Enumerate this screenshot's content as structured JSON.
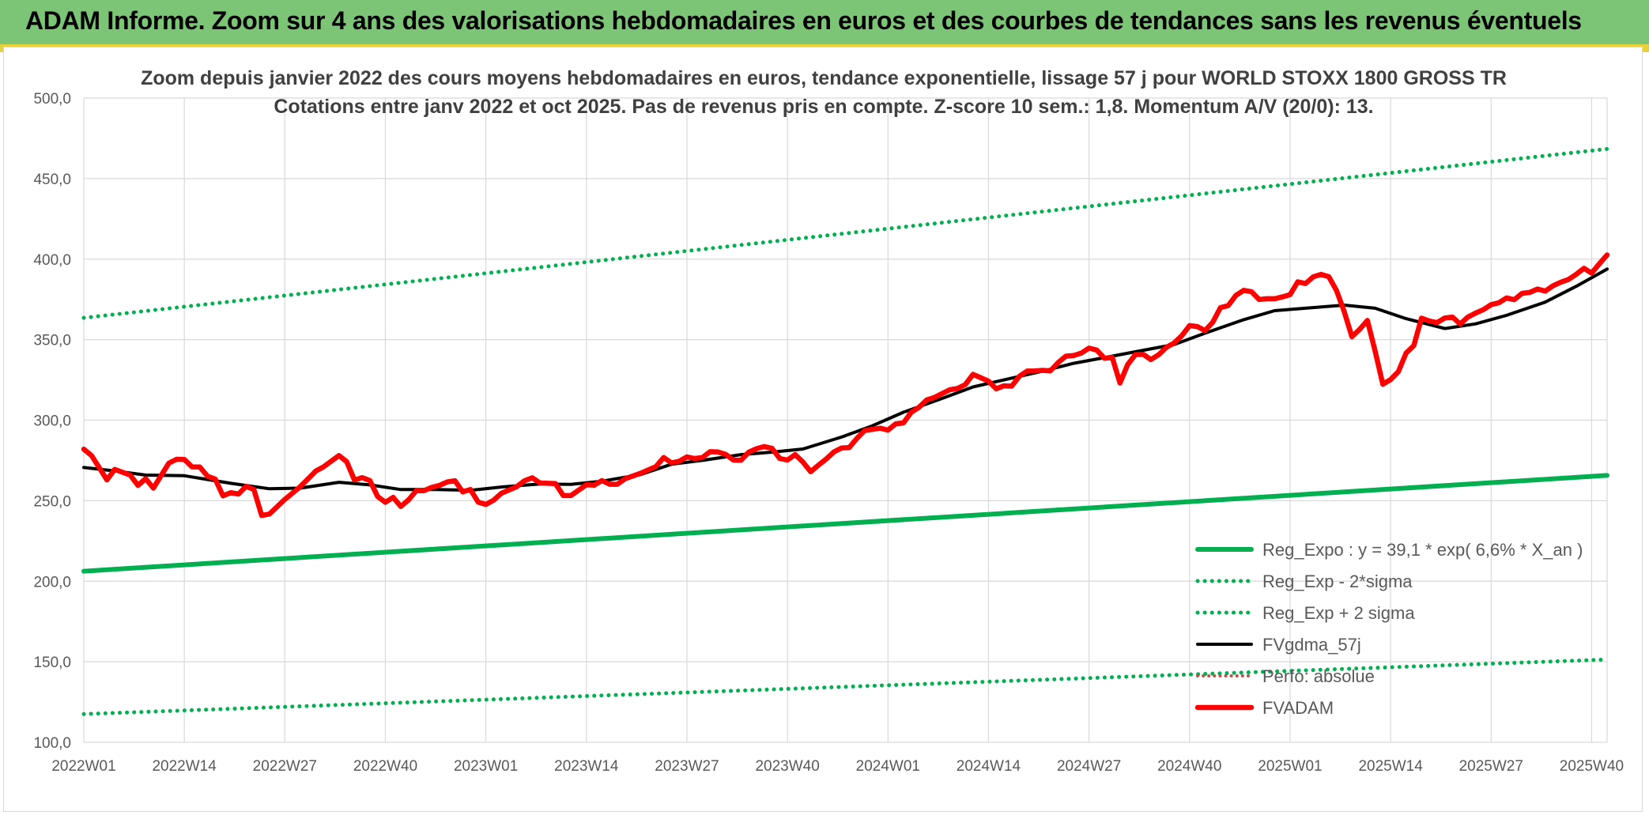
{
  "banner": {
    "title": "ADAM Informe. Zoom sur 4 ans des valorisations hebdomadaires en euros et des courbes de tendances sans les revenus éventuels"
  },
  "colors": {
    "banner_bg": "#7cc576",
    "regression": "#00b050",
    "gdma": "#000000",
    "adam": "#ff0000",
    "perfo": "#c0504d",
    "grid": "#d9d9d9",
    "axis_text": "#595959",
    "title_text": "#404040"
  },
  "chart_data": {
    "type": "line",
    "title": "Zoom depuis janvier 2022 des cours moyens hebdomadaires en euros, tendance exponentielle, lissage 57 j pour WORLD STOXX 1800 GROSS TR",
    "subtitle": "Cotations entre janv 2022 et oct 2025. Pas de revenus pris en compte. Z-score 10 sem.: 1,8. Momentum A/V (20/0): 13.",
    "xlabel": "",
    "ylabel": "",
    "ylim": [
      100,
      500
    ],
    "yticks": [
      "100,0",
      "150,0",
      "200,0",
      "250,0",
      "300,0",
      "350,0",
      "400,0",
      "450,0",
      "500,0"
    ],
    "xticks": [
      "2022W01",
      "2022W14",
      "2022W27",
      "2022W40",
      "2023W01",
      "2023W14",
      "2023W27",
      "2023W40",
      "2024W01",
      "2024W14",
      "2024W27",
      "2024W40",
      "2025W01",
      "2025W14",
      "2025W27",
      "2025W40"
    ],
    "grid": true,
    "legend_position": "bottom-right",
    "weeks": 198,
    "series": [
      {
        "name": "Reg_Expo : y = 39,1 * exp( 6,6% *  X_an )",
        "style": "solid-thick",
        "points": [
          [
            0,
            206.2
          ],
          [
            197,
            265.7
          ]
        ]
      },
      {
        "name": "Reg_Exp - 2*sigma",
        "style": "dotted",
        "points": [
          [
            0,
            117.5
          ],
          [
            197,
            151.4
          ]
        ]
      },
      {
        "name": "Reg_Exp + 2 sigma",
        "style": "dotted",
        "points": [
          [
            0,
            363.5
          ],
          [
            197,
            468.4
          ]
        ]
      },
      {
        "name": "FVgdma_57j",
        "style": "solid",
        "points": [
          [
            0,
            270.6
          ],
          [
            4,
            268.5
          ],
          [
            8,
            265.9
          ],
          [
            13,
            265.5
          ],
          [
            19,
            260.8
          ],
          [
            24,
            257.4
          ],
          [
            28,
            257.8
          ],
          [
            33,
            261.4
          ],
          [
            37,
            259.8
          ],
          [
            41,
            256.9
          ],
          [
            45,
            257.0
          ],
          [
            50,
            256.4
          ],
          [
            54,
            258.5
          ],
          [
            59,
            260.4
          ],
          [
            63,
            260.1
          ],
          [
            67,
            262.1
          ],
          [
            72,
            266.2
          ],
          [
            76,
            272.6
          ],
          [
            80,
            275.0
          ],
          [
            85,
            278.6
          ],
          [
            89,
            280.1
          ],
          [
            93,
            282.1
          ],
          [
            98,
            289.5
          ],
          [
            102,
            296.5
          ],
          [
            106,
            304.9
          ],
          [
            111,
            313.5
          ],
          [
            115,
            320.6
          ],
          [
            119,
            325.0
          ],
          [
            124,
            330.4
          ],
          [
            128,
            335.3
          ],
          [
            132,
            338.8
          ],
          [
            137,
            343.4
          ],
          [
            141,
            346.9
          ],
          [
            145,
            354.0
          ],
          [
            150,
            362.4
          ],
          [
            154,
            368.0
          ],
          [
            158,
            369.5
          ],
          [
            163,
            371.4
          ],
          [
            167,
            369.5
          ],
          [
            171,
            363.0
          ],
          [
            176,
            356.9
          ],
          [
            180,
            359.8
          ],
          [
            184,
            365.1
          ],
          [
            189,
            373.3
          ],
          [
            193,
            383.1
          ],
          [
            197,
            393.8
          ]
        ]
      },
      {
        "name": "Perfo: absolue",
        "style": "dotted-brown",
        "points": []
      },
      {
        "name": "FVADAM",
        "style": "solid-thick",
        "points": [
          [
            0,
            282.0
          ],
          [
            1,
            278.0
          ],
          [
            3,
            262.9
          ],
          [
            4,
            269.4
          ],
          [
            6,
            265.9
          ],
          [
            7,
            259.5
          ],
          [
            8,
            263.7
          ],
          [
            9,
            257.8
          ],
          [
            11,
            273.3
          ],
          [
            12,
            275.7
          ],
          [
            13,
            275.6
          ],
          [
            14,
            271.0
          ],
          [
            15,
            270.9
          ],
          [
            16,
            265.2
          ],
          [
            17,
            263.4
          ],
          [
            18,
            253.0
          ],
          [
            19,
            255.0
          ],
          [
            20,
            254.1
          ],
          [
            21,
            258.9
          ],
          [
            22,
            256.9
          ],
          [
            23,
            240.8
          ],
          [
            24,
            241.7
          ],
          [
            25,
            246.2
          ],
          [
            26,
            250.8
          ],
          [
            28,
            258.7
          ],
          [
            30,
            268.4
          ],
          [
            31,
            271.0
          ],
          [
            33,
            278.0
          ],
          [
            34,
            274.2
          ],
          [
            35,
            262.8
          ],
          [
            36,
            264.3
          ],
          [
            37,
            262.5
          ],
          [
            38,
            252.6
          ],
          [
            39,
            249.0
          ],
          [
            40,
            252.0
          ],
          [
            41,
            246.4
          ],
          [
            42,
            250.5
          ],
          [
            43,
            256.2
          ],
          [
            44,
            256.2
          ],
          [
            45,
            258.3
          ],
          [
            46,
            259.5
          ],
          [
            47,
            261.6
          ],
          [
            48,
            262.4
          ],
          [
            49,
            255.5
          ],
          [
            50,
            256.9
          ],
          [
            51,
            249.1
          ],
          [
            52,
            247.7
          ],
          [
            53,
            250.3
          ],
          [
            54,
            254.6
          ],
          [
            56,
            258.7
          ],
          [
            57,
            262.4
          ],
          [
            58,
            264.2
          ],
          [
            59,
            261.0
          ],
          [
            61,
            260.6
          ],
          [
            62,
            253.2
          ],
          [
            63,
            253.2
          ],
          [
            64,
            256.5
          ],
          [
            65,
            259.9
          ],
          [
            66,
            259.6
          ],
          [
            67,
            262.5
          ],
          [
            68,
            260.2
          ],
          [
            69,
            260.2
          ],
          [
            70,
            263.6
          ],
          [
            72,
            267.0
          ],
          [
            74,
            271.2
          ],
          [
            75,
            276.8
          ],
          [
            76,
            273.5
          ],
          [
            77,
            274.5
          ],
          [
            78,
            277.2
          ],
          [
            79,
            276.2
          ],
          [
            80,
            276.8
          ],
          [
            81,
            280.4
          ],
          [
            82,
            280.2
          ],
          [
            83,
            278.8
          ],
          [
            84,
            275.2
          ],
          [
            85,
            275.1
          ],
          [
            86,
            280.1
          ],
          [
            87,
            282.3
          ],
          [
            88,
            283.6
          ],
          [
            89,
            282.5
          ],
          [
            90,
            276.2
          ],
          [
            91,
            275.2
          ],
          [
            92,
            278.6
          ],
          [
            93,
            274.0
          ],
          [
            94,
            268.0
          ],
          [
            95,
            272.0
          ],
          [
            96,
            275.8
          ],
          [
            97,
            280.2
          ],
          [
            98,
            282.7
          ],
          [
            99,
            283.0
          ],
          [
            100,
            288.8
          ],
          [
            101,
            293.6
          ],
          [
            102,
            294.3
          ],
          [
            103,
            295.0
          ],
          [
            104,
            293.8
          ],
          [
            105,
            297.7
          ],
          [
            106,
            298.3
          ],
          [
            107,
            304.8
          ],
          [
            108,
            307.9
          ],
          [
            109,
            312.5
          ],
          [
            110,
            314.1
          ],
          [
            111,
            316.5
          ],
          [
            112,
            318.9
          ],
          [
            113,
            319.7
          ],
          [
            114,
            322.1
          ],
          [
            115,
            328.4
          ],
          [
            116,
            326.3
          ],
          [
            117,
            324.2
          ],
          [
            118,
            319.5
          ],
          [
            119,
            321.3
          ],
          [
            120,
            321.1
          ],
          [
            121,
            327.3
          ],
          [
            122,
            330.5
          ],
          [
            123,
            330.6
          ],
          [
            124,
            330.9
          ],
          [
            125,
            330.6
          ],
          [
            126,
            335.7
          ],
          [
            127,
            339.7
          ],
          [
            128,
            340.1
          ],
          [
            129,
            341.6
          ],
          [
            130,
            344.7
          ],
          [
            131,
            343.5
          ],
          [
            132,
            338.4
          ],
          [
            133,
            338.9
          ],
          [
            134,
            323.0
          ],
          [
            135,
            334.5
          ],
          [
            136,
            340.7
          ],
          [
            137,
            340.9
          ],
          [
            138,
            337.6
          ],
          [
            139,
            340.6
          ],
          [
            140,
            345.2
          ],
          [
            141,
            347.9
          ],
          [
            142,
            352.4
          ],
          [
            143,
            358.7
          ],
          [
            144,
            358.1
          ],
          [
            145,
            355.6
          ],
          [
            146,
            360.7
          ],
          [
            147,
            369.9
          ],
          [
            148,
            371.1
          ],
          [
            149,
            377.5
          ],
          [
            150,
            380.6
          ],
          [
            151,
            379.8
          ],
          [
            152,
            374.9
          ],
          [
            153,
            375.4
          ],
          [
            154,
            375.4
          ],
          [
            155,
            376.5
          ],
          [
            156,
            377.9
          ],
          [
            157,
            385.9
          ],
          [
            158,
            384.8
          ],
          [
            159,
            389.0
          ],
          [
            160,
            390.5
          ],
          [
            161,
            389.1
          ],
          [
            162,
            380.6
          ],
          [
            163,
            367.5
          ],
          [
            164,
            351.8
          ],
          [
            165,
            356.4
          ],
          [
            166,
            361.9
          ],
          [
            167,
            343.0
          ],
          [
            168,
            322.3
          ],
          [
            169,
            325.2
          ],
          [
            170,
            330.1
          ],
          [
            171,
            341.6
          ],
          [
            172,
            346.3
          ],
          [
            173,
            363.3
          ],
          [
            174,
            361.6
          ],
          [
            175,
            360.5
          ],
          [
            176,
            363.4
          ],
          [
            177,
            364.0
          ],
          [
            178,
            359.7
          ],
          [
            179,
            364.0
          ],
          [
            180,
            366.5
          ],
          [
            181,
            368.6
          ],
          [
            182,
            371.7
          ],
          [
            183,
            372.9
          ],
          [
            184,
            375.9
          ],
          [
            185,
            374.8
          ],
          [
            186,
            378.7
          ],
          [
            187,
            379.3
          ],
          [
            188,
            381.4
          ],
          [
            189,
            380.1
          ],
          [
            190,
            383.4
          ],
          [
            191,
            385.6
          ],
          [
            192,
            387.3
          ],
          [
            193,
            390.5
          ],
          [
            194,
            394.3
          ],
          [
            195,
            391.3
          ],
          [
            196,
            397.1
          ],
          [
            197,
            402.6
          ]
        ]
      }
    ]
  }
}
